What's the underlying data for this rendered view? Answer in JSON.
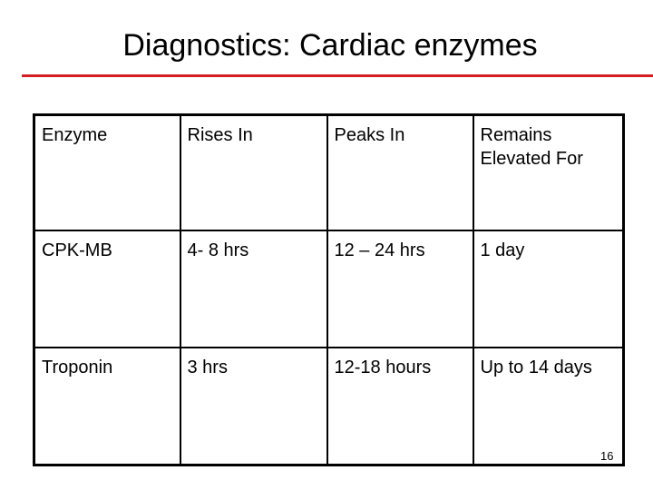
{
  "title": "Diagnostics: Cardiac enzymes",
  "accent_color": "#d42020",
  "table": {
    "headers": [
      "Enzyme",
      "Rises In",
      "Peaks In",
      "Remains Elevated For"
    ],
    "rows": [
      [
        "CPK-MB",
        "4- 8 hrs",
        "12 – 24 hrs",
        "1 day"
      ],
      [
        "Troponin",
        "3 hrs",
        "12-18 hours",
        "Up to 14 days"
      ]
    ]
  },
  "page_number": "16"
}
